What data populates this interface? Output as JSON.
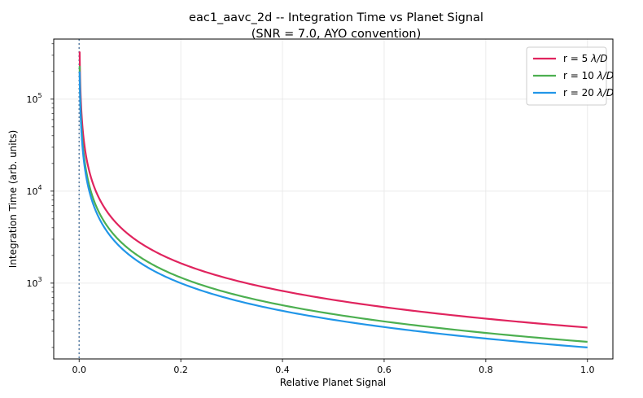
{
  "chart_data": {
    "type": "line",
    "title_line1": "eac1_aavc_2d -- Integration Time vs Planet Signal",
    "title_line2": "(SNR = 7.0, AYO convention)",
    "xlabel": "Relative Planet Signal",
    "ylabel": "Integration Time (arb. units)",
    "x_scale": "linear",
    "y_scale": "log",
    "xlim": [
      -0.05,
      1.05
    ],
    "ylim": [
      150,
      450000
    ],
    "x_ticks": [
      0.0,
      0.2,
      0.4,
      0.6,
      0.8,
      1.0
    ],
    "x_tick_labels": [
      "0.0",
      "0.2",
      "0.4",
      "0.6",
      "0.8",
      "1.0"
    ],
    "y_ticks": [
      1000,
      10000,
      100000
    ],
    "y_tick_labels": [
      {
        "base": "10",
        "exp": "3"
      },
      {
        "base": "10",
        "exp": "4"
      },
      {
        "base": "10",
        "exp": "5"
      }
    ],
    "grid": true,
    "legend_position": "top-right",
    "vertical_reference_line": {
      "x": 0.0,
      "style": "dotted",
      "color": "#5b7fa6"
    },
    "series": [
      {
        "name": "r = 5 λ/D",
        "name_prefix": "r = 5 ",
        "name_math": "λ/D",
        "color": "#e0245e",
        "x": [
          0.001,
          0.002,
          0.005,
          0.01,
          0.02,
          0.05,
          0.1,
          0.2,
          0.3,
          0.4,
          0.5,
          0.6,
          0.7,
          0.8,
          0.9,
          1.0
        ],
        "y": [
          330000,
          160000,
          66000,
          33000,
          16500,
          6600,
          3300,
          1650,
          1100,
          825,
          660,
          550,
          470,
          410,
          365,
          330
        ]
      },
      {
        "name": "r = 10 λ/D",
        "name_prefix": "r = 10 ",
        "name_math": "λ/D",
        "color": "#4caf50",
        "x": [
          0.001,
          0.002,
          0.005,
          0.01,
          0.02,
          0.05,
          0.1,
          0.2,
          0.3,
          0.4,
          0.5,
          0.6,
          0.7,
          0.8,
          0.9,
          1.0
        ],
        "y": [
          230000,
          115000,
          46000,
          23000,
          11500,
          4600,
          2300,
          1150,
          765,
          575,
          460,
          385,
          330,
          288,
          256,
          230
        ]
      },
      {
        "name": "r = 20 λ/D",
        "name_prefix": "r = 20 ",
        "name_math": "λ/D",
        "color": "#2196e8",
        "x": [
          0.001,
          0.002,
          0.005,
          0.01,
          0.02,
          0.05,
          0.1,
          0.2,
          0.3,
          0.4,
          0.5,
          0.6,
          0.7,
          0.8,
          0.9,
          1.0
        ],
        "y": [
          200000,
          100000,
          40000,
          20000,
          10000,
          4000,
          2000,
          1000,
          665,
          500,
          400,
          333,
          285,
          250,
          222,
          200
        ]
      }
    ]
  }
}
